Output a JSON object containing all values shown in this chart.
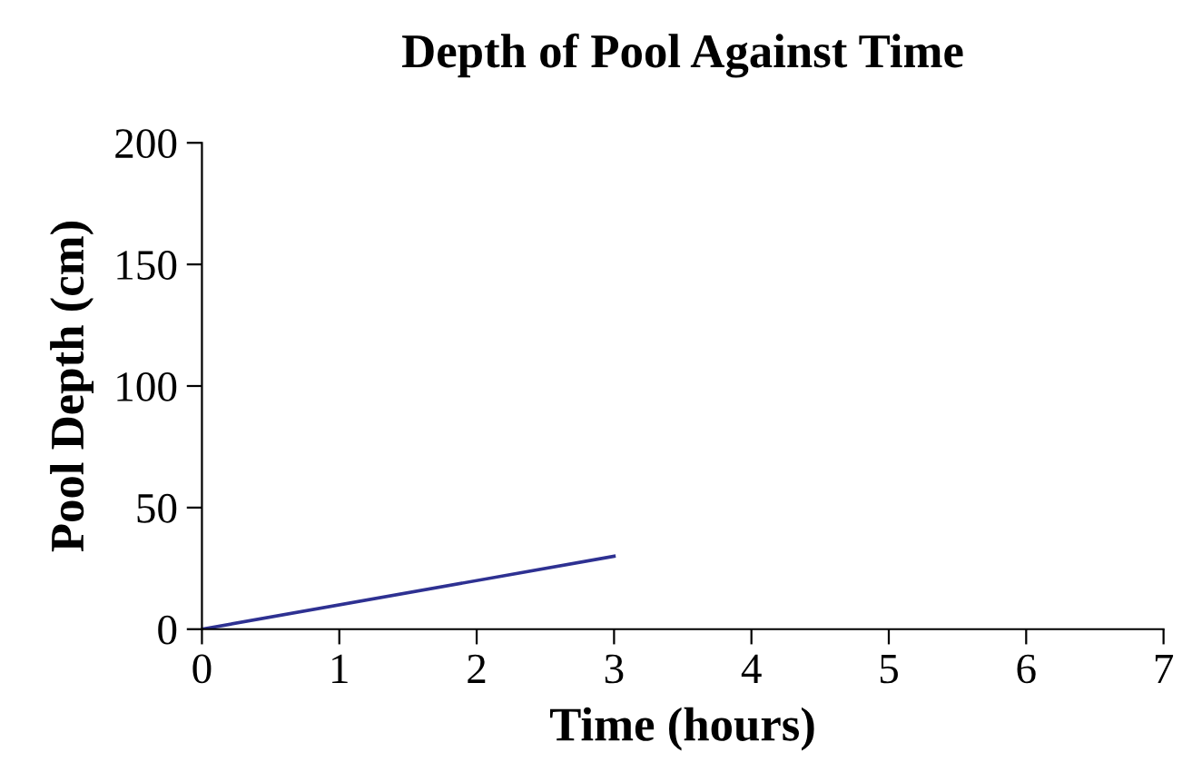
{
  "chart_data": {
    "type": "line",
    "title": "Depth of Pool Against Time",
    "xlabel": "Time (hours)",
    "ylabel": "Pool Depth (cm)",
    "x": [
      0,
      3
    ],
    "series": [
      {
        "color": "#2e3192",
        "values": [
          0,
          30
        ]
      }
    ],
    "xlim": [
      0,
      7
    ],
    "xticks": [
      0,
      1,
      2,
      3,
      4,
      5,
      6,
      7
    ],
    "ylim": [
      0,
      200
    ],
    "yticks": [
      0,
      50,
      100,
      150,
      200
    ],
    "grid": false,
    "legend": false,
    "marker": "none",
    "line_style": "solid"
  }
}
